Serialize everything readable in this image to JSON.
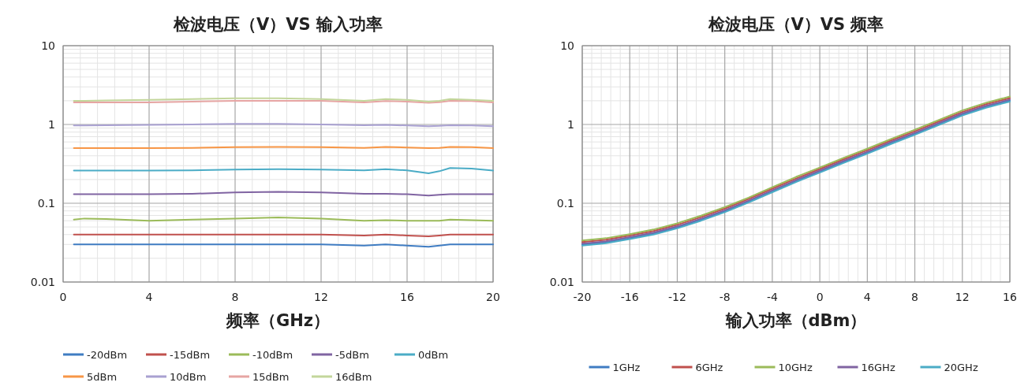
{
  "chart_data": [
    {
      "type": "line",
      "title": "检波电压（V）VS 输入功率",
      "xlabel": "频率（GHz）",
      "log": "y",
      "grid": true,
      "legend": "bottom",
      "xlim": [
        0,
        20
      ],
      "xticks": [
        0,
        4,
        8,
        12,
        16,
        20
      ],
      "ylim": [
        0.01,
        10
      ],
      "yticks": [
        0.01,
        0.1,
        1,
        10
      ],
      "x": [
        0.5,
        1,
        2,
        4,
        6,
        8,
        10,
        12,
        14,
        15,
        16,
        17,
        17.5,
        18,
        19,
        20
      ],
      "series": [
        {
          "name": "-20dBm",
          "color": "#3f7cc2",
          "values": [
            0.03,
            0.03,
            0.03,
            0.03,
            0.03,
            0.03,
            0.03,
            0.03,
            0.029,
            0.03,
            0.029,
            0.028,
            0.029,
            0.03,
            0.03,
            0.03
          ]
        },
        {
          "name": "-15dBm",
          "color": "#c0504d",
          "values": [
            0.04,
            0.04,
            0.04,
            0.04,
            0.04,
            0.04,
            0.04,
            0.04,
            0.039,
            0.04,
            0.039,
            0.038,
            0.039,
            0.04,
            0.04,
            0.04
          ]
        },
        {
          "name": "-10dBm",
          "color": "#9bbb59",
          "values": [
            0.062,
            0.064,
            0.063,
            0.06,
            0.062,
            0.064,
            0.066,
            0.064,
            0.06,
            0.061,
            0.06,
            0.06,
            0.06,
            0.062,
            0.061,
            0.06
          ]
        },
        {
          "name": "-5dBm",
          "color": "#8064a2",
          "values": [
            0.13,
            0.13,
            0.13,
            0.13,
            0.132,
            0.137,
            0.14,
            0.137,
            0.132,
            0.132,
            0.13,
            0.125,
            0.128,
            0.13,
            0.13,
            0.13
          ]
        },
        {
          "name": "0dBm",
          "color": "#4bacc6",
          "values": [
            0.26,
            0.26,
            0.26,
            0.26,
            0.262,
            0.267,
            0.27,
            0.267,
            0.262,
            0.27,
            0.262,
            0.24,
            0.255,
            0.28,
            0.275,
            0.26
          ]
        },
        {
          "name": "5dBm",
          "color": "#f79646",
          "values": [
            0.5,
            0.5,
            0.5,
            0.5,
            0.505,
            0.515,
            0.52,
            0.515,
            0.505,
            0.52,
            0.51,
            0.5,
            0.505,
            0.52,
            0.515,
            0.5
          ]
        },
        {
          "name": "10dBm",
          "color": "#a9a1d1",
          "values": [
            0.97,
            0.97,
            0.98,
            0.99,
            1.0,
            1.02,
            1.02,
            1.0,
            0.98,
            0.99,
            0.97,
            0.95,
            0.96,
            0.98,
            0.97,
            0.95
          ]
        },
        {
          "name": "15dBm",
          "color": "#e6a5a3",
          "values": [
            1.9,
            1.9,
            1.9,
            1.9,
            1.95,
            2.0,
            2.0,
            2.0,
            1.9,
            1.98,
            1.95,
            1.88,
            1.92,
            2.0,
            1.98,
            1.9
          ]
        },
        {
          "name": "16dBm",
          "color": "#c3d69b",
          "values": [
            2.0,
            2.0,
            2.02,
            2.05,
            2.1,
            2.15,
            2.15,
            2.1,
            2.0,
            2.1,
            2.05,
            1.95,
            2.0,
            2.1,
            2.05,
            2.0
          ]
        }
      ]
    },
    {
      "type": "line",
      "title": "检波电压（V）VS 频率",
      "xlabel": "输入功率（dBm）",
      "log": "y",
      "grid": true,
      "legend": "bottom",
      "xlim": [
        -20,
        16
      ],
      "xticks": [
        -20,
        -16,
        -12,
        -8,
        -4,
        0,
        4,
        8,
        12,
        16
      ],
      "ylim": [
        0.01,
        10
      ],
      "yticks": [
        0.01,
        0.1,
        1,
        10
      ],
      "x": [
        -20,
        -18,
        -16,
        -14,
        -12,
        -10,
        -8,
        -6,
        -4,
        -2,
        0,
        2,
        4,
        6,
        8,
        10,
        12,
        14,
        16
      ],
      "series": [
        {
          "name": "1GHz",
          "color": "#3f7cc2",
          "values": [
            0.0299,
            0.0319,
            0.036,
            0.0412,
            0.0494,
            0.0618,
            0.0793,
            0.105,
            0.142,
            0.192,
            0.252,
            0.335,
            0.438,
            0.582,
            0.762,
            1.01,
            1.34,
            1.68,
            2.01
          ]
        },
        {
          "name": "6GHz",
          "color": "#c0504d",
          "values": [
            0.0322,
            0.0344,
            0.0389,
            0.0444,
            0.0533,
            0.0666,
            0.0855,
            0.113,
            0.153,
            0.206,
            0.272,
            0.361,
            0.472,
            0.627,
            0.821,
            1.09,
            1.44,
            1.81,
            2.16
          ]
        },
        {
          "name": "10GHz",
          "color": "#9bbb59",
          "values": [
            0.0336,
            0.036,
            0.0406,
            0.0464,
            0.0557,
            0.0696,
            0.0893,
            0.118,
            0.16,
            0.216,
            0.284,
            0.377,
            0.493,
            0.655,
            0.858,
            1.14,
            1.51,
            1.89,
            2.26
          ]
        },
        {
          "name": "16GHz",
          "color": "#8064a2",
          "values": [
            0.0307,
            0.0329,
            0.0371,
            0.0424,
            0.0509,
            0.0636,
            0.0816,
            0.108,
            0.146,
            0.197,
            0.26,
            0.345,
            0.45,
            0.6,
            0.784,
            1.04,
            1.38,
            1.73,
            2.07
          ]
        },
        {
          "name": "20GHz",
          "color": "#4bacc6",
          "values": [
            0.029,
            0.031,
            0.035,
            0.04,
            0.048,
            0.06,
            0.077,
            0.102,
            0.138,
            0.186,
            0.245,
            0.325,
            0.425,
            0.565,
            0.74,
            0.98,
            1.3,
            1.63,
            1.95
          ]
        }
      ]
    }
  ]
}
